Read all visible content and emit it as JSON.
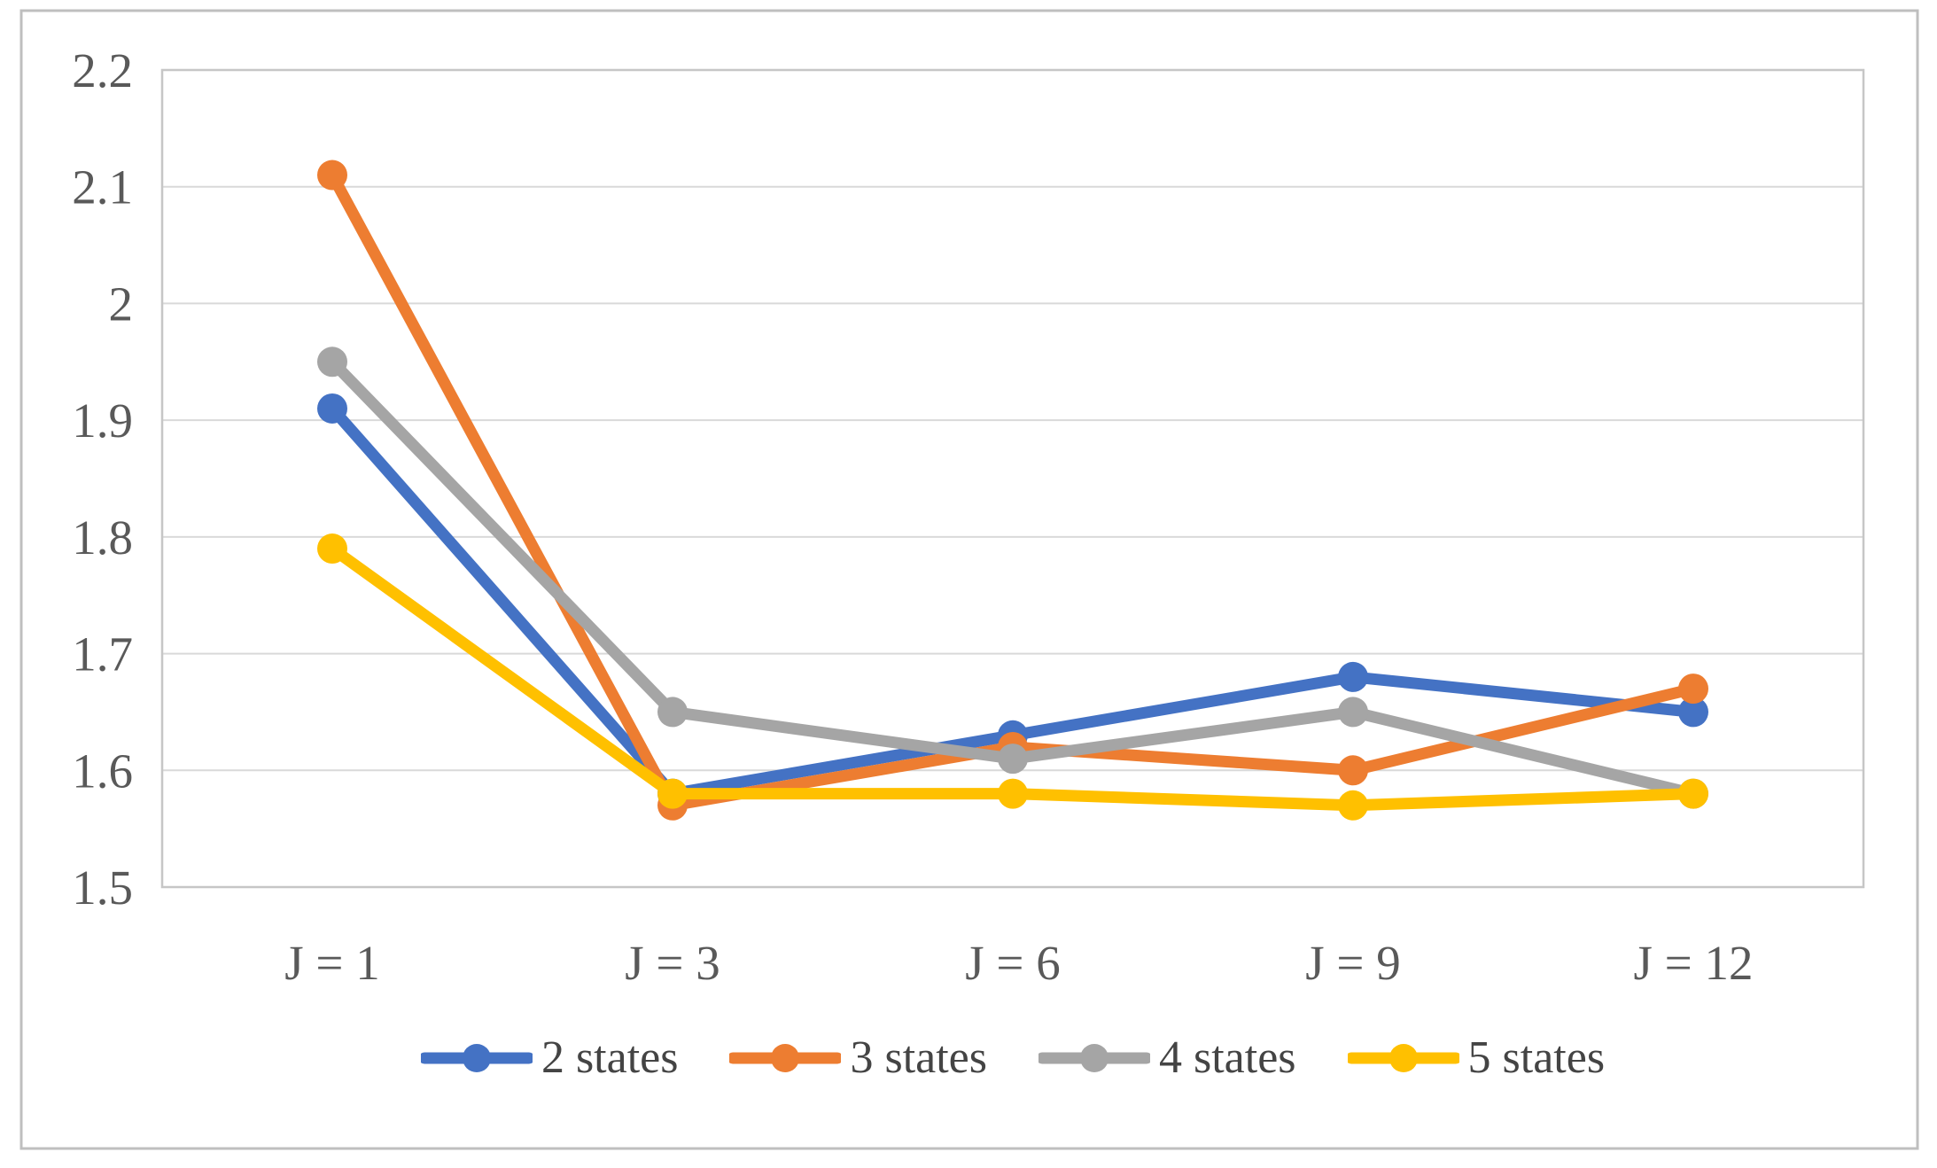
{
  "figure": {
    "kind": "excel-style line chart",
    "background": "#ffffff",
    "outer_border_color": "#bfbfbf"
  },
  "chart_data": {
    "type": "line",
    "title": "",
    "xlabel": "",
    "ylabel": "",
    "categories": [
      "J = 1",
      "J = 3",
      "J = 6",
      "J = 9",
      "J = 12"
    ],
    "series": [
      {
        "name": "2 states",
        "color": "#4472C4",
        "values": [
          1.91,
          1.58,
          1.63,
          1.68,
          1.65
        ]
      },
      {
        "name": "3 states",
        "color": "#ED7D31",
        "values": [
          2.11,
          1.57,
          1.62,
          1.6,
          1.67
        ]
      },
      {
        "name": "4 states",
        "color": "#A5A5A5",
        "values": [
          1.95,
          1.65,
          1.61,
          1.65,
          1.58
        ]
      },
      {
        "name": "5 states",
        "color": "#FFC000",
        "values": [
          1.79,
          1.58,
          1.58,
          1.57,
          1.58
        ]
      }
    ],
    "ylim": [
      1.5,
      2.2
    ],
    "ytick_step": 0.1,
    "ytick_labels": [
      "1.5",
      "1.6",
      "1.7",
      "1.8",
      "1.9",
      "2",
      "2.1",
      "2.2"
    ],
    "grid": true,
    "legend_position": "bottom",
    "marker": "circle",
    "axis_text_color": "#595959",
    "gridline_color": "#d9d9d9",
    "plot_border_color": "#c6c6c6"
  }
}
